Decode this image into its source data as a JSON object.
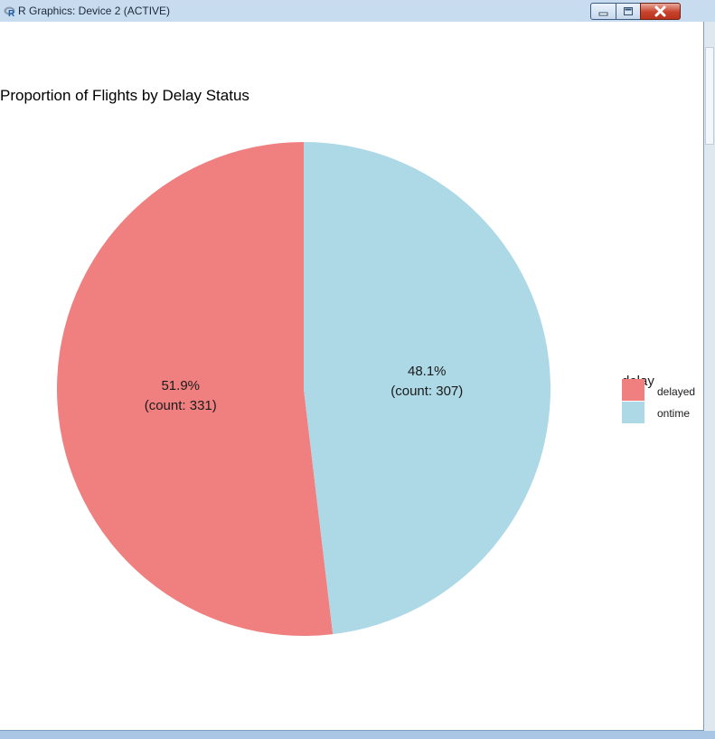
{
  "window": {
    "title": "R Graphics: Device 2 (ACTIVE)",
    "icon": "r-logo-icon",
    "controls": [
      "minimize-icon",
      "maximize-icon",
      "close-icon"
    ]
  },
  "chart_data": {
    "type": "pie",
    "title": "Proportion of Flights by Delay Status",
    "legend_title": "delay",
    "legend_position": "right",
    "categories": [
      "delayed",
      "ontime"
    ],
    "values": [
      331,
      307
    ],
    "percent_labels": [
      "51.9%",
      "48.1%"
    ],
    "count_labels": [
      "(count: 331)",
      "(count: 307)"
    ],
    "colors": [
      "#f08080",
      "#add8e6"
    ]
  }
}
